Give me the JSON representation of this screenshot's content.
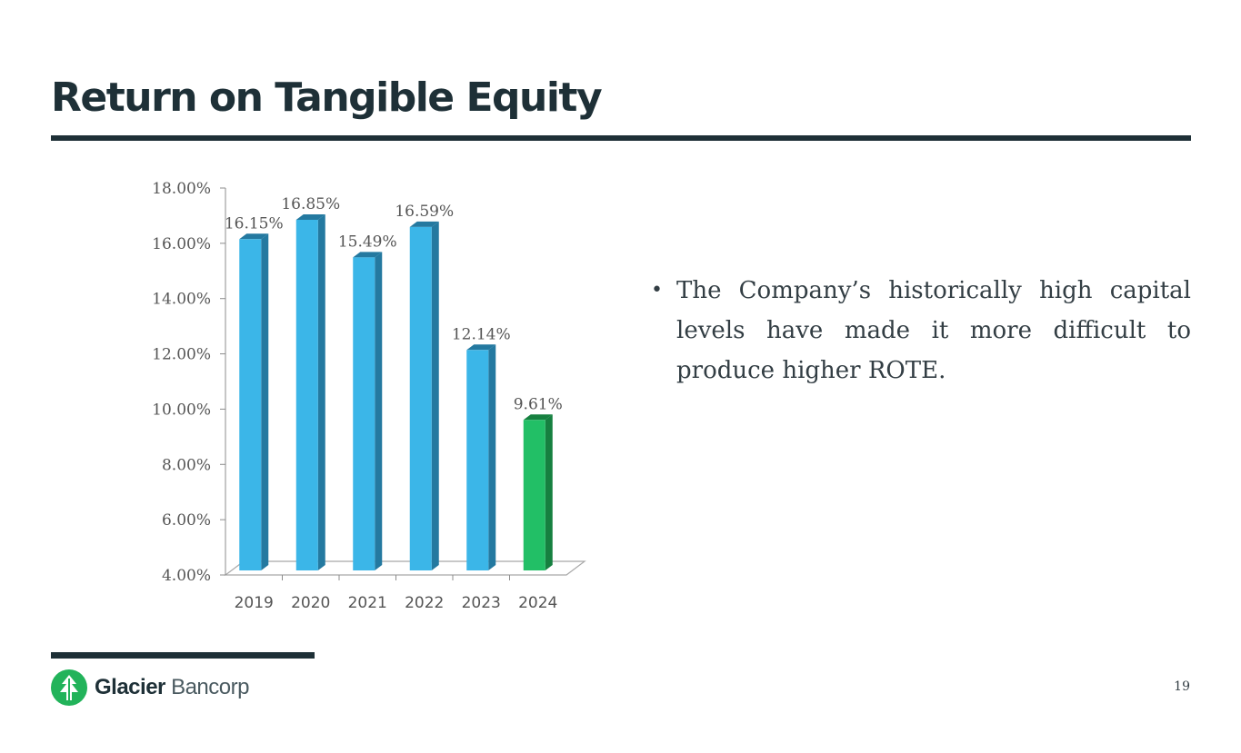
{
  "slide": {
    "title": "Return on Tangible Equity",
    "bullet": "The Company’s historically high capital levels have made it more difficult to produce higher ROTE.",
    "page_number": "19",
    "logo": {
      "brand_bold": "Glacier",
      "brand_light": "Bancorp"
    }
  },
  "colors": {
    "dark": "#1e3037",
    "bar_blue": "#3bb6e8",
    "bar_blue_side": "#2479a0",
    "bar_green": "#22bf66",
    "bar_green_side": "#168040",
    "logo_green": "#22b35a"
  },
  "chart_data": {
    "type": "bar",
    "categories": [
      "2019",
      "2020",
      "2021",
      "2022",
      "2023",
      "2024"
    ],
    "values": [
      16.15,
      16.85,
      15.49,
      16.59,
      12.14,
      9.61
    ],
    "value_labels": [
      "16.15%",
      "16.85%",
      "15.49%",
      "16.59%",
      "12.14%",
      "9.61%"
    ],
    "highlight_index": 5,
    "ylim": [
      4,
      18
    ],
    "yticks": [
      4,
      6,
      8,
      10,
      12,
      14,
      16,
      18
    ],
    "ytick_labels": [
      "4.00%",
      "6.00%",
      "8.00%",
      "10.00%",
      "12.00%",
      "14.00%",
      "16.00%",
      "18.00%"
    ],
    "title": "",
    "xlabel": "",
    "ylabel": "",
    "grid": false,
    "legend": "none"
  }
}
